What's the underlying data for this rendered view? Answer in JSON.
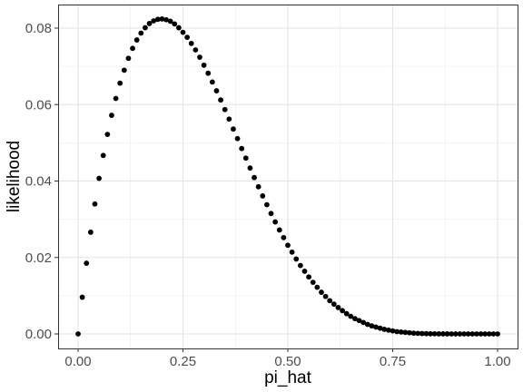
{
  "chart_data": {
    "type": "scatter",
    "title": "",
    "xlabel": "pi_hat",
    "ylabel": "likelihood",
    "xlim": [
      0.0,
      1.0
    ],
    "ylim": [
      0.0,
      0.082
    ],
    "x_ticks": [
      0.0,
      0.25,
      0.5,
      0.75,
      1.0
    ],
    "x_tick_labels": [
      "0.00",
      "0.25",
      "0.50",
      "0.75",
      "1.00"
    ],
    "y_ticks": [
      0.0,
      0.02,
      0.04,
      0.06,
      0.08
    ],
    "y_tick_labels": [
      "0.00",
      "0.02",
      "0.04",
      "0.06",
      "0.08"
    ],
    "grid": true,
    "legend": "none",
    "point_color": "#000000",
    "series": [
      {
        "x": [
          0.0,
          0.01,
          0.02,
          0.03,
          0.04,
          0.05,
          0.06,
          0.07,
          0.08,
          0.09,
          0.1,
          0.11,
          0.12,
          0.13,
          0.14,
          0.15,
          0.16,
          0.17,
          0.18,
          0.19,
          0.2,
          0.21,
          0.22,
          0.23,
          0.24,
          0.25,
          0.26,
          0.27,
          0.28,
          0.29,
          0.3,
          0.31,
          0.32,
          0.33,
          0.34,
          0.35,
          0.36,
          0.37,
          0.38,
          0.39,
          0.4,
          0.41,
          0.42,
          0.43,
          0.44,
          0.45,
          0.46,
          0.47,
          0.48,
          0.49,
          0.5,
          0.51,
          0.52,
          0.53,
          0.54,
          0.55,
          0.56,
          0.57,
          0.58,
          0.59,
          0.6,
          0.61,
          0.62,
          0.63,
          0.64,
          0.65,
          0.66,
          0.67,
          0.68,
          0.69,
          0.7,
          0.71,
          0.72,
          0.73,
          0.74,
          0.75,
          0.76,
          0.77,
          0.78,
          0.79,
          0.8,
          0.81,
          0.82,
          0.83,
          0.84,
          0.85,
          0.86,
          0.87,
          0.88,
          0.89,
          0.9,
          0.91,
          0.92,
          0.93,
          0.94,
          0.95,
          0.96,
          0.97,
          0.98,
          0.99,
          1.0
        ],
        "y": [
          0.0,
          0.0096,
          0.0185,
          0.0266,
          0.034,
          0.0407,
          0.0467,
          0.0522,
          0.0572,
          0.0616,
          0.0656,
          0.069,
          0.0721,
          0.0747,
          0.0769,
          0.0787,
          0.0801,
          0.0812,
          0.0819,
          0.0823,
          0.0824,
          0.0822,
          0.0818,
          0.0811,
          0.0801,
          0.0789,
          0.0776,
          0.076,
          0.0743,
          0.0724,
          0.0703,
          0.0682,
          0.0659,
          0.0636,
          0.0612,
          0.0587,
          0.0562,
          0.0536,
          0.0511,
          0.0485,
          0.046,
          0.0434,
          0.0409,
          0.0385,
          0.0361,
          0.0338,
          0.0315,
          0.0293,
          0.0272,
          0.0252,
          0.0232,
          0.0214,
          0.0196,
          0.0179,
          0.0164,
          0.0149,
          0.0135,
          0.0122,
          0.0109,
          0.0098,
          0.0087,
          0.0078,
          0.0069,
          0.0061,
          0.0053,
          0.0046,
          0.004,
          0.0035,
          0.003,
          0.0025,
          0.0021,
          0.0018,
          0.0015,
          0.0012,
          0.001,
          0.0008,
          0.0006,
          0.0005,
          0.0004,
          0.0003,
          0.0002,
          0.00015,
          0.0001,
          7e-05,
          5e-05,
          3e-05,
          2e-05,
          1e-05,
          1e-05,
          0.0,
          0.0,
          0.0,
          0.0,
          0.0,
          0.0,
          0.0,
          0.0,
          0.0,
          0.0,
          0.0,
          0.0
        ]
      }
    ]
  }
}
